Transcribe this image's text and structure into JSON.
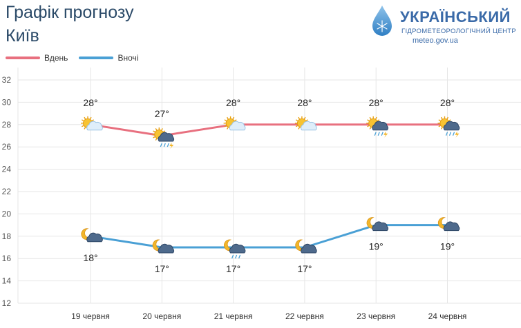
{
  "header": {
    "title": "Графік прогнозу",
    "city": "Київ"
  },
  "brand": {
    "name": "УКРАЇНСЬКИЙ",
    "subtitle": "ГІДРОМЕТЕОРОЛОГІЧНИЙ ЦЕНТР",
    "url": "meteo.gov.ua",
    "color": "#3a6aa8"
  },
  "colors": {
    "day": "#e8707f",
    "night": "#4aa0d5",
    "grid": "#e6e6e6",
    "axis_text": "#555555"
  },
  "chart_data": {
    "type": "line",
    "categories": [
      "19 червня",
      "20 червня",
      "21 червня",
      "22 червня",
      "23 червня",
      "24 червня"
    ],
    "series": [
      {
        "name": "Вдень",
        "values": [
          28,
          27,
          28,
          28,
          28,
          28
        ],
        "labels": [
          "28°",
          "27°",
          "28°",
          "28°",
          "28°",
          "28°"
        ],
        "icons": [
          "sun-partly-cloudy-icon",
          "sun-cloud-rain-thunder-icon",
          "sun-partly-cloudy-icon",
          "sun-partly-cloudy-icon",
          "sun-cloud-rain-thunder-icon",
          "sun-cloud-rain-thunder-icon"
        ]
      },
      {
        "name": "Вночі",
        "values": [
          18,
          17,
          17,
          17,
          19,
          19
        ],
        "labels": [
          "18°",
          "17°",
          "17°",
          "17°",
          "19°",
          "19°"
        ],
        "icons": [
          "moon-cloud-icon",
          "moon-cloud-icon",
          "moon-cloud-rain-icon",
          "moon-cloud-icon",
          "moon-cloud-icon",
          "moon-cloud-icon"
        ]
      }
    ],
    "yticks": [
      12,
      14,
      16,
      18,
      20,
      22,
      24,
      26,
      28,
      30,
      32
    ],
    "ylim": [
      12,
      32
    ],
    "grid": true,
    "legend_position": "top-left"
  }
}
